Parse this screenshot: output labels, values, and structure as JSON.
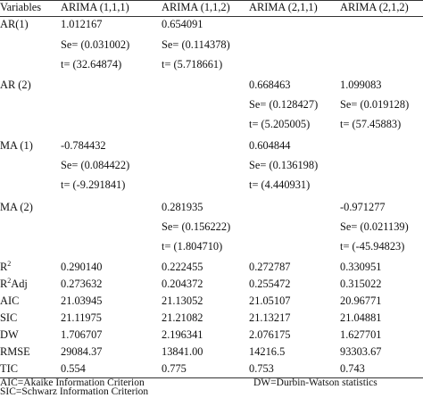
{
  "table": {
    "headers": [
      "Variables",
      "ARIMA (1,1,1)",
      "ARIMA (1,1,2)",
      "ARIMA (2,1,1)",
      "ARIMA (2,1,2)"
    ],
    "ar1": {
      "label": "AR(1)",
      "coef": [
        "1.012167",
        "0.654091",
        "",
        ""
      ],
      "se": [
        "Se= (0.031002)",
        "Se= (0.114378)",
        "",
        ""
      ],
      "t": [
        "t= (32.64874)",
        "t= (5.718661)",
        "",
        ""
      ]
    },
    "ar2": {
      "label": "AR (2)",
      "coef": [
        "",
        "",
        "0.668463",
        "1.099083"
      ],
      "se": [
        "",
        "",
        "Se= (0.128427)",
        "Se= (0.019128)"
      ],
      "t": [
        "",
        "",
        "t= (5.205005)",
        "t= (57.45883)"
      ]
    },
    "ma1": {
      "label": "MA (1)",
      "coef": [
        "-0.784432",
        "",
        "0.604844",
        ""
      ],
      "se": [
        "Se= (0.084422)",
        "",
        "Se= (0.136198)",
        ""
      ],
      "t": [
        "t= (-9.291841)",
        "",
        "t= (4.440931)",
        ""
      ]
    },
    "ma2": {
      "label": "MA (2)",
      "coef": [
        "",
        "0.281935",
        "",
        "-0.971277"
      ],
      "se": [
        "",
        "Se= (0.156222)",
        "",
        "Se= (0.021139)"
      ],
      "t": [
        "",
        "t= (1.804710)",
        "",
        "t= (-45.94823)"
      ]
    },
    "stats": [
      {
        "label": "R",
        "sup": "2",
        "suffix": "",
        "values": [
          "0.290140",
          "0.222455",
          "0.272787",
          "0.330951"
        ]
      },
      {
        "label": "R",
        "sup": "2",
        "suffix": "Adj",
        "values": [
          "0.273632",
          "0.204372",
          "0.255472",
          "0.315022"
        ]
      },
      {
        "label": "AIC",
        "sup": "",
        "suffix": "",
        "values": [
          "21.03945",
          "21.13052",
          "21.05107",
          "20.96771"
        ]
      },
      {
        "label": "SIC",
        "sup": "",
        "suffix": "",
        "values": [
          "21.11975",
          "21.21082",
          "21.13217",
          "21.04881"
        ]
      },
      {
        "label": "DW",
        "sup": "",
        "suffix": "",
        "values": [
          "1.706707",
          "2.196341",
          "2.076175",
          "1.627701"
        ]
      },
      {
        "label": "RMSE",
        "sup": "",
        "suffix": "",
        "values": [
          "29084.37",
          "13841.00",
          "14216.5",
          "93303.67"
        ]
      },
      {
        "label": "TIC",
        "sup": "",
        "suffix": "",
        "values": [
          "0.554",
          "0.775",
          "0.753",
          "0.743"
        ]
      }
    ]
  },
  "footnotes": {
    "aic": "AIC=Akaike Information Criterion",
    "dw": "DW=Durbin-Watson statistics",
    "sic": "SIC=Schwarz Information Criterion"
  }
}
